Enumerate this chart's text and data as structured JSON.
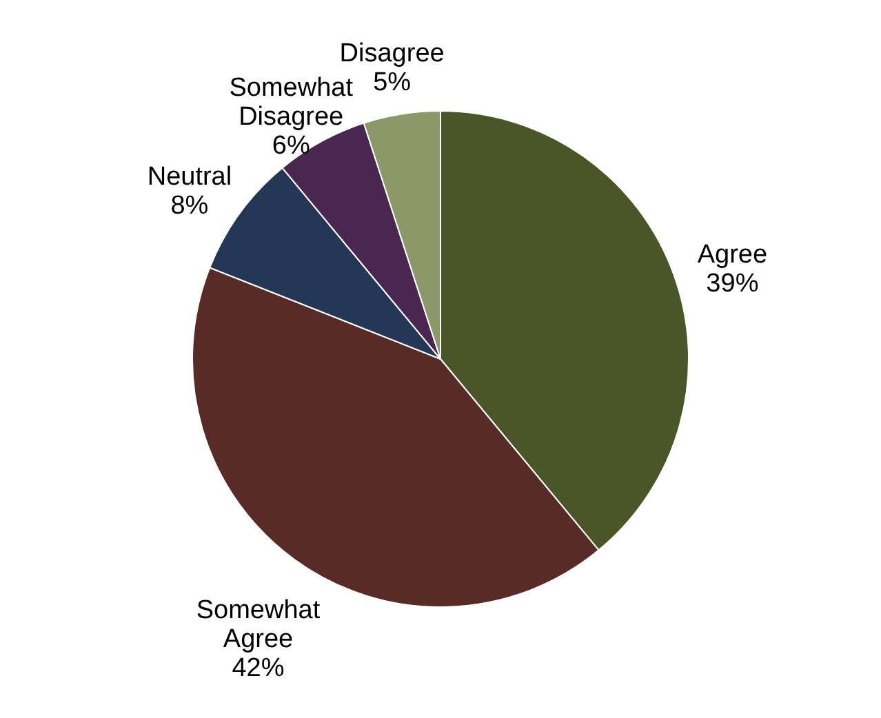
{
  "chart_data": {
    "type": "pie",
    "categories": [
      "Agree",
      "Somewhat Agree",
      "Neutral",
      "Somewhat Disagree",
      "Disagree"
    ],
    "values": [
      39,
      42,
      8,
      6,
      5
    ],
    "colors": [
      "#4a5628",
      "#582b26",
      "#243757",
      "#4a2750",
      "#8b9868"
    ],
    "value_labels": [
      "39%",
      "42%",
      "8%",
      "6%",
      "5%"
    ]
  }
}
